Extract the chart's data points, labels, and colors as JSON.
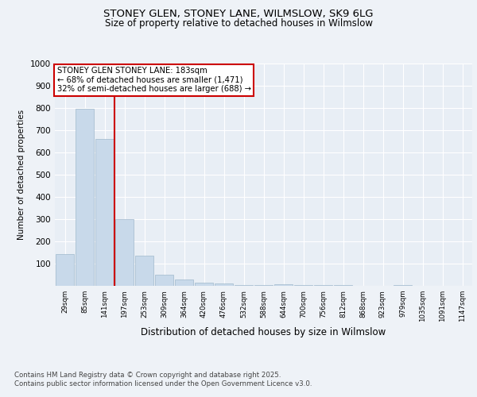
{
  "title1": "STONEY GLEN, STONEY LANE, WILMSLOW, SK9 6LG",
  "title2": "Size of property relative to detached houses in Wilmslow",
  "xlabel": "Distribution of detached houses by size in Wilmslow",
  "ylabel": "Number of detached properties",
  "bins": [
    "29sqm",
    "85sqm",
    "141sqm",
    "197sqm",
    "253sqm",
    "309sqm",
    "364sqm",
    "420sqm",
    "476sqm",
    "532sqm",
    "588sqm",
    "644sqm",
    "700sqm",
    "756sqm",
    "812sqm",
    "868sqm",
    "923sqm",
    "979sqm",
    "1035sqm",
    "1091sqm",
    "1147sqm"
  ],
  "values": [
    143,
    798,
    660,
    300,
    135,
    50,
    27,
    15,
    10,
    5,
    3,
    8,
    5,
    3,
    2,
    1,
    0,
    3,
    1,
    0,
    0
  ],
  "bar_color": "#c8d9ea",
  "bar_edge_color": "#a0b8cc",
  "annotation_text": "STONEY GLEN STONEY LANE: 183sqm\n← 68% of detached houses are smaller (1,471)\n32% of semi-detached houses are larger (688) →",
  "annotation_box_color": "#ffffff",
  "annotation_box_edge": "#cc0000",
  "vline_color": "#cc0000",
  "ylim": [
    0,
    1000
  ],
  "yticks": [
    0,
    100,
    200,
    300,
    400,
    500,
    600,
    700,
    800,
    900,
    1000
  ],
  "footer1": "Contains HM Land Registry data © Crown copyright and database right 2025.",
  "footer2": "Contains public sector information licensed under the Open Government Licence v3.0.",
  "bg_color": "#eef2f7",
  "plot_bg_color": "#e8eef5"
}
